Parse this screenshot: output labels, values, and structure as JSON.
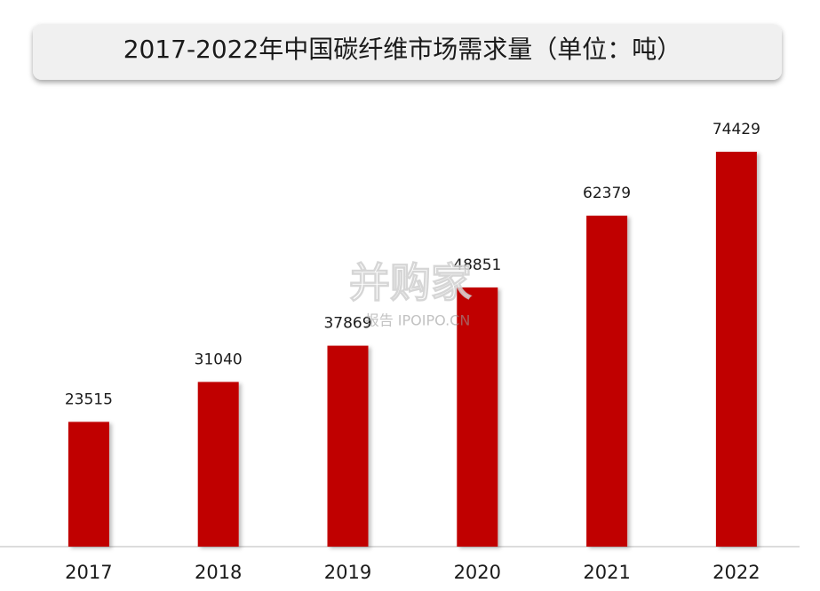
{
  "chart_data": {
    "type": "bar",
    "title": "2017-2022年中国碳纤维市场需求量（单位：吨）",
    "categories": [
      "2017",
      "2018",
      "2019",
      "2020",
      "2021",
      "2022"
    ],
    "values": [
      23515,
      31040,
      37869,
      48851,
      62379,
      74429
    ],
    "color": "#c00000",
    "annotations": [
      "并购家",
      "报告 IPOIPO.CN"
    ]
  }
}
